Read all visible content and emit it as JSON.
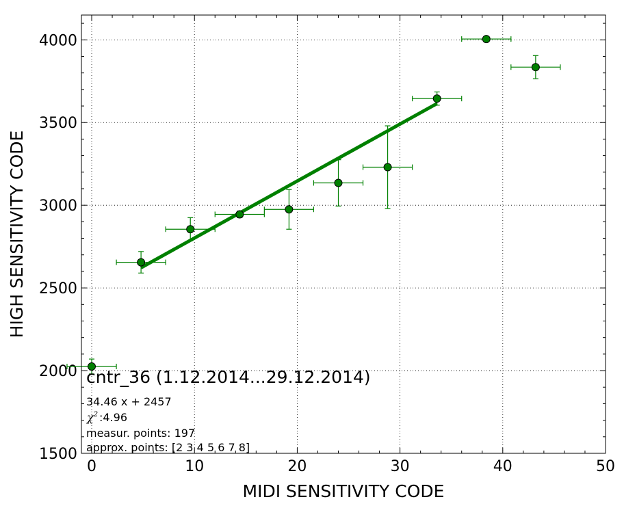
{
  "chart_data": {
    "type": "scatter",
    "xlabel": "MIDI SENSITIVITY CODE",
    "ylabel": "HIGH SENSITIVITY CODE",
    "xlim": [
      -1,
      50
    ],
    "ylim": [
      1500,
      4150
    ],
    "x_ticks": [
      "0",
      "10",
      "20",
      "30",
      "40",
      "50"
    ],
    "y_ticks": [
      "1500",
      "2000",
      "2500",
      "3000",
      "3500",
      "4000"
    ],
    "x_tick_values": [
      0,
      10,
      20,
      30,
      40,
      50
    ],
    "y_tick_values": [
      1500,
      2000,
      2500,
      3000,
      3500,
      4000
    ],
    "grid": true,
    "points": [
      {
        "x": 0.0,
        "y": 2025,
        "xerr": 2.4,
        "yerr": 45
      },
      {
        "x": 4.8,
        "y": 2655,
        "xerr": 2.4,
        "yerr": 65
      },
      {
        "x": 9.6,
        "y": 2855,
        "xerr": 2.4,
        "yerr": 70
      },
      {
        "x": 14.4,
        "y": 2945,
        "xerr": 2.4,
        "yerr": 20
      },
      {
        "x": 19.2,
        "y": 2975,
        "xerr": 2.4,
        "yerr": 120
      },
      {
        "x": 24.0,
        "y": 3135,
        "xerr": 2.4,
        "yerr": 140
      },
      {
        "x": 28.8,
        "y": 3230,
        "xerr": 2.4,
        "yerr": 250
      },
      {
        "x": 33.6,
        "y": 3645,
        "xerr": 2.4,
        "yerr": 40
      },
      {
        "x": 38.4,
        "y": 4005,
        "xerr": 2.4,
        "yerr": 10
      },
      {
        "x": 43.2,
        "y": 3835,
        "xerr": 2.4,
        "yerr": 70
      }
    ],
    "fit_line": {
      "slope": 34.46,
      "intercept": 2457,
      "x_range": [
        4.8,
        33.6
      ]
    },
    "annotations": {
      "title": "cntr_36 (1.12.2014...29.12.2014)",
      "equation": "34.46 x + 2457",
      "chi2": " :4.96",
      "measur": "measur. points: 197",
      "approx": "approx. points: [2 3 4 5 6 7 8]"
    },
    "colors": {
      "series": "#008000",
      "marker": "#008000",
      "grid": "#000000"
    }
  }
}
